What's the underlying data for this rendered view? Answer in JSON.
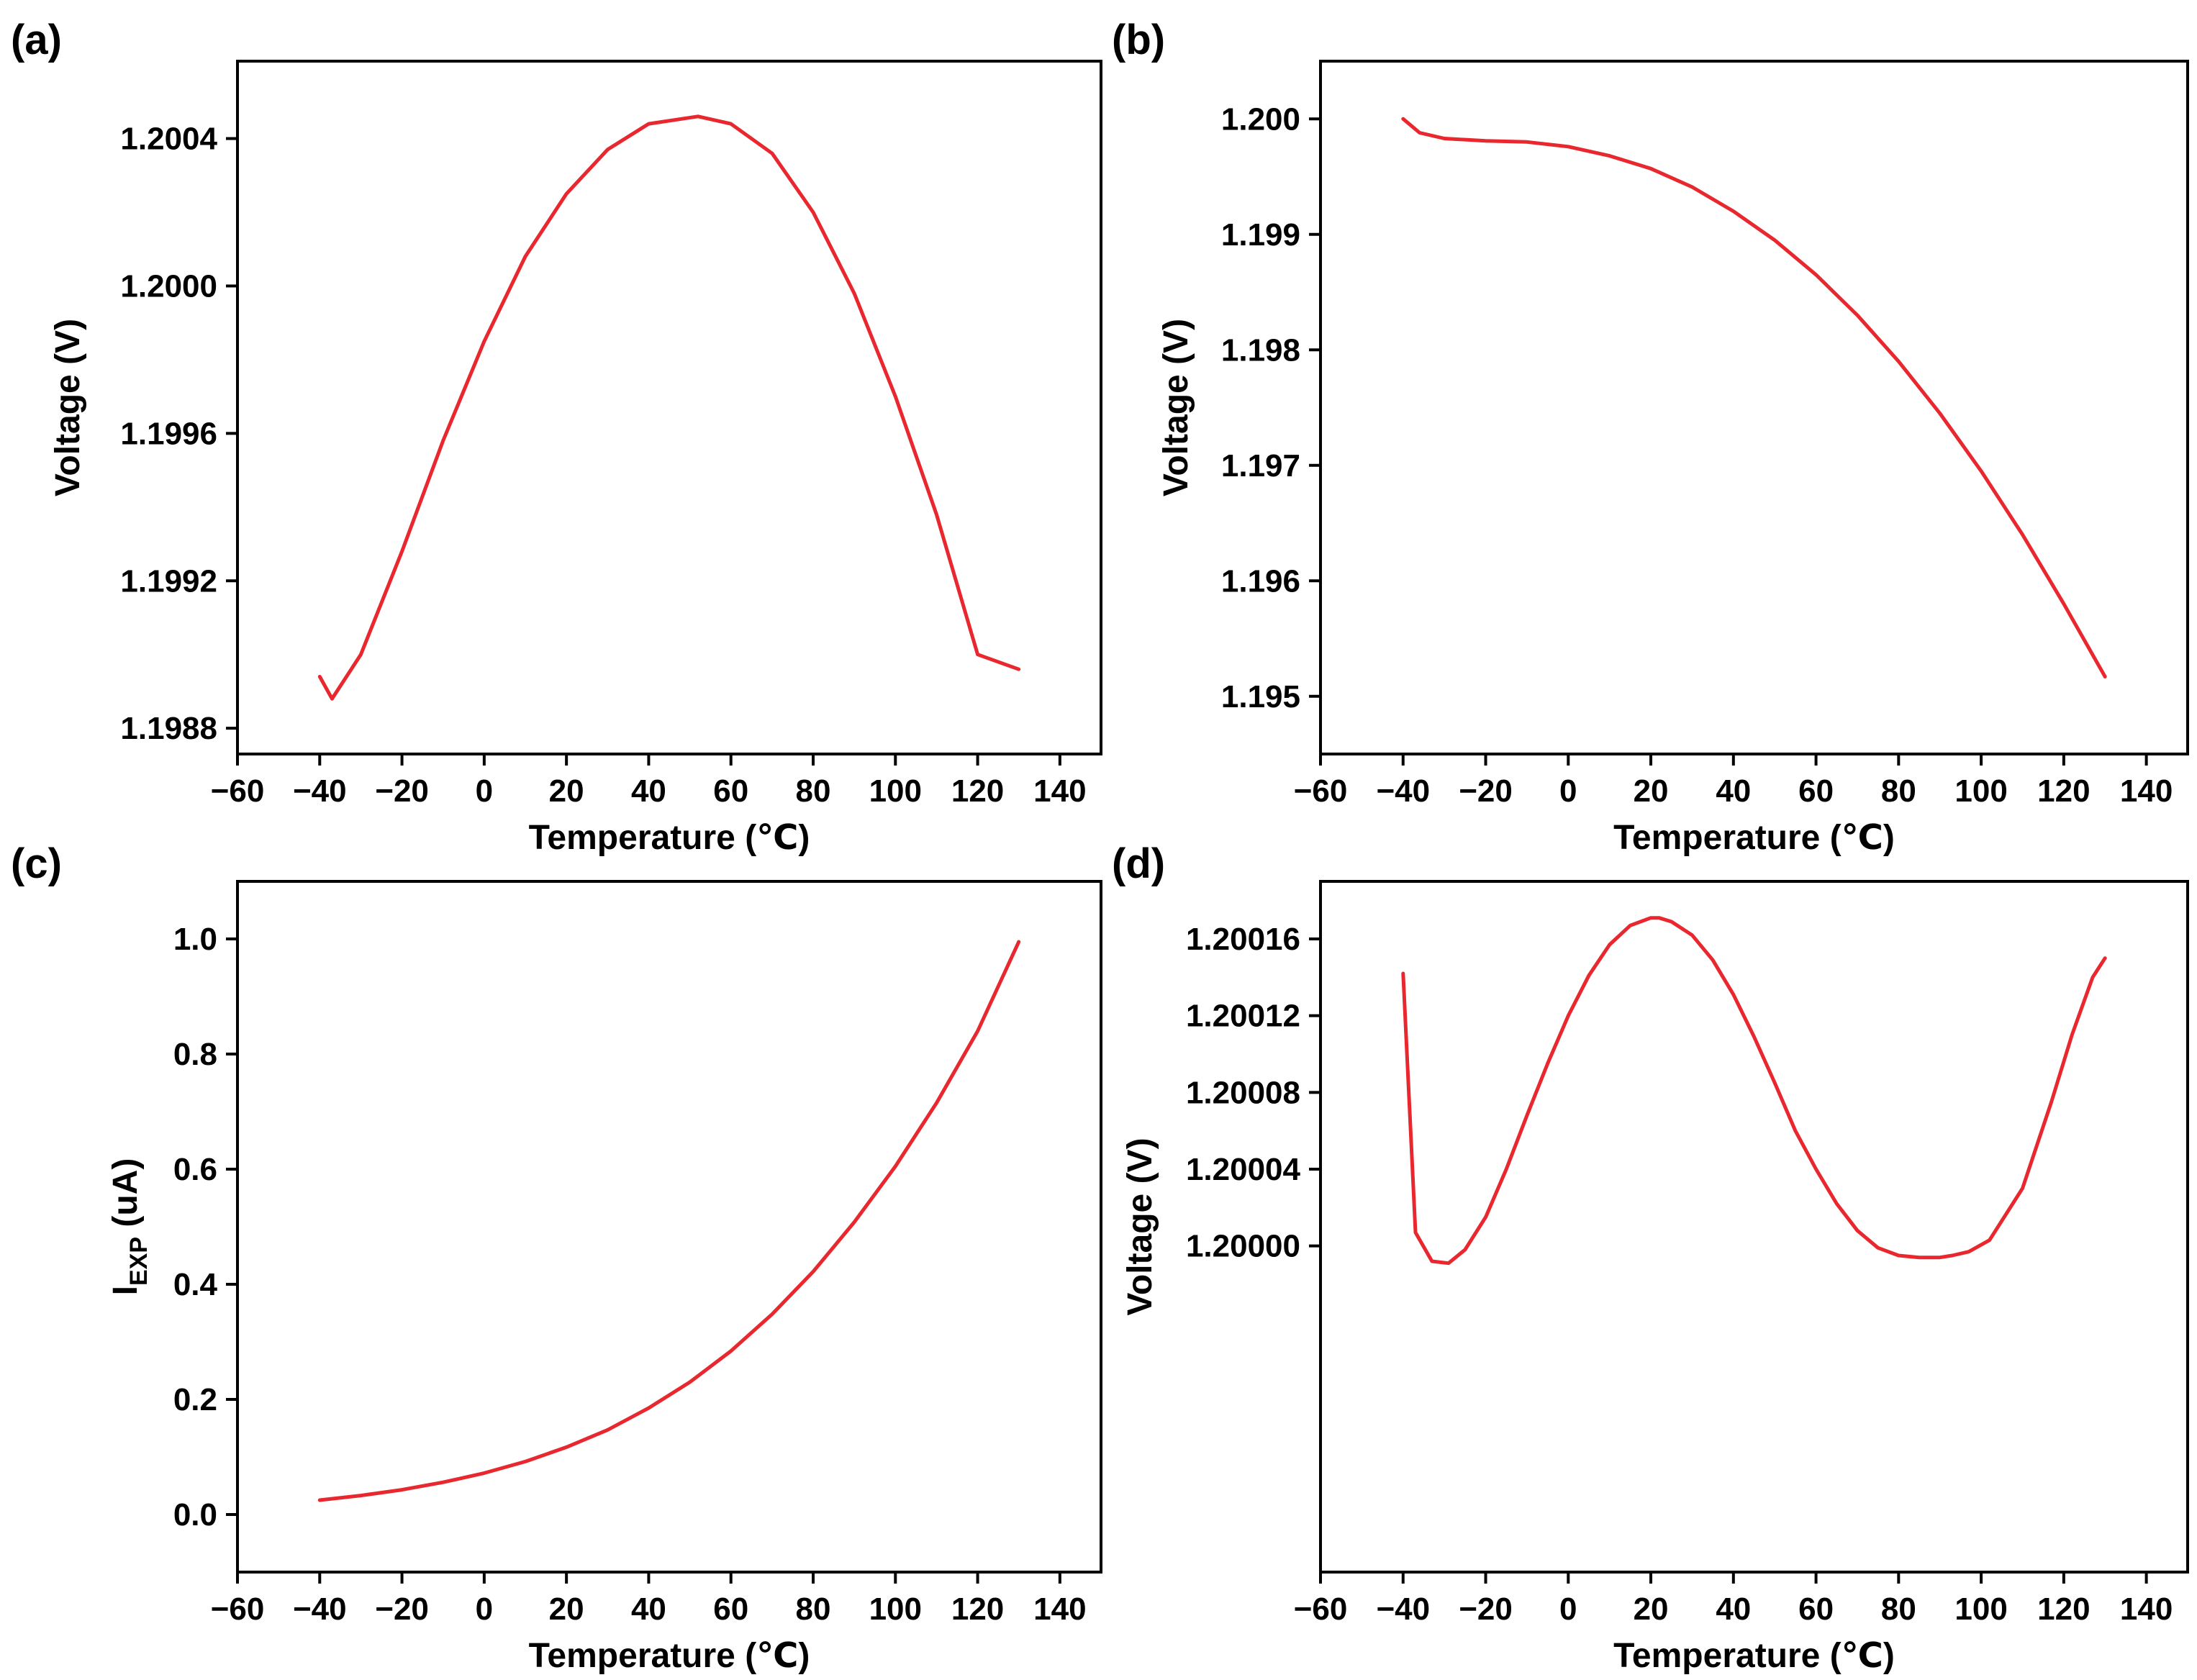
{
  "colors": {
    "series": "#e8282e",
    "axis": "#000000"
  },
  "chart_data": [
    {
      "type": "line",
      "panel_label": "(a)",
      "xlabel": "Temperature (℃)",
      "ylabel": "Voltage (V)",
      "xlim": [
        -60,
        150
      ],
      "ylim": [
        1.19873,
        1.20061
      ],
      "xticks": [
        -60,
        -40,
        -20,
        0,
        20,
        40,
        60,
        80,
        100,
        120,
        140
      ],
      "xtick_labels": [
        "−60",
        "−40",
        "−20",
        "0",
        "20",
        "40",
        "60",
        "80",
        "100",
        "120",
        "140"
      ],
      "yticks": [
        1.1988,
        1.1992,
        1.1996,
        1.2,
        1.2004
      ],
      "ytick_labels": [
        "1.1988",
        "1.1992",
        "1.1996",
        "1.2000",
        "1.2004"
      ],
      "series": [
        {
          "name": "Voltage",
          "x": [
            -40,
            -37,
            -30,
            -20,
            -10,
            0,
            10,
            20,
            30,
            40,
            52,
            60,
            70,
            80,
            90,
            100,
            110,
            120,
            130
          ],
          "y": [
            1.19894,
            1.19888,
            1.199,
            1.19928,
            1.19958,
            1.19985,
            1.20008,
            1.20025,
            1.20037,
            1.20044,
            1.20046,
            1.20044,
            1.20036,
            1.2002,
            1.19998,
            1.1997,
            1.19938,
            1.199,
            1.19896
          ]
        }
      ]
    },
    {
      "type": "line",
      "panel_label": "(b)",
      "xlabel": "Temperature (℃)",
      "ylabel": "Voltage (V)",
      "xlim": [
        -60,
        150
      ],
      "ylim": [
        1.1945,
        1.2005
      ],
      "xticks": [
        -60,
        -40,
        -20,
        0,
        20,
        40,
        60,
        80,
        100,
        120,
        140
      ],
      "xtick_labels": [
        "−60",
        "−40",
        "−20",
        "0",
        "20",
        "40",
        "60",
        "80",
        "100",
        "120",
        "140"
      ],
      "yticks": [
        1.195,
        1.196,
        1.197,
        1.198,
        1.199,
        1.2
      ],
      "ytick_labels": [
        "1.195",
        "1.196",
        "1.197",
        "1.198",
        "1.199",
        "1.200"
      ],
      "series": [
        {
          "name": "Voltage",
          "x": [
            -40,
            -36,
            -30,
            -20,
            -10,
            0,
            10,
            20,
            30,
            40,
            50,
            60,
            70,
            80,
            90,
            100,
            110,
            120,
            130
          ],
          "y": [
            1.2,
            1.19988,
            1.19983,
            1.19981,
            1.1998,
            1.19976,
            1.19968,
            1.19957,
            1.19941,
            1.1992,
            1.19895,
            1.19865,
            1.1983,
            1.1979,
            1.19745,
            1.19695,
            1.1964,
            1.1958,
            1.19517
          ]
        }
      ]
    },
    {
      "type": "line",
      "panel_label": "(c)",
      "xlabel": "Temperature (℃)",
      "ylabel_main": "I",
      "ylabel_sub": "EXP",
      "ylabel_unit": " (uA)",
      "xlim": [
        -60,
        150
      ],
      "ylim": [
        -0.1,
        1.1
      ],
      "xticks": [
        -60,
        -40,
        -20,
        0,
        20,
        40,
        60,
        80,
        100,
        120,
        140
      ],
      "xtick_labels": [
        "−60",
        "−40",
        "−20",
        "0",
        "20",
        "40",
        "60",
        "80",
        "100",
        "120",
        "140"
      ],
      "yticks": [
        0.0,
        0.2,
        0.4,
        0.6,
        0.8,
        1.0
      ],
      "ytick_labels": [
        "0.0",
        "0.2",
        "0.4",
        "0.6",
        "0.8",
        "1.0"
      ],
      "series": [
        {
          "name": "IEXP",
          "x": [
            -40,
            -30,
            -20,
            -10,
            0,
            10,
            20,
            30,
            40,
            50,
            60,
            70,
            80,
            90,
            100,
            110,
            120,
            130
          ],
          "y": [
            0.025,
            0.033,
            0.043,
            0.056,
            0.072,
            0.092,
            0.117,
            0.147,
            0.185,
            0.23,
            0.284,
            0.348,
            0.422,
            0.508,
            0.605,
            0.715,
            0.84,
            0.995
          ]
        }
      ]
    },
    {
      "type": "line",
      "panel_label": "(d)",
      "xlabel": "Temperature (℃)",
      "ylabel": "Voltage (V)",
      "xlim": [
        -60,
        150
      ],
      "ylim": [
        1.19983,
        1.20019
      ],
      "xticks": [
        -60,
        -40,
        -20,
        0,
        20,
        40,
        60,
        80,
        100,
        120,
        140
      ],
      "xtick_labels": [
        "−60",
        "−40",
        "−20",
        "0",
        "20",
        "40",
        "60",
        "80",
        "100",
        "120",
        "140"
      ],
      "yticks": [
        1.2,
        1.20004,
        1.20008,
        1.20012,
        1.20016
      ],
      "ytick_labels": [
        "1.20000",
        "1.20004",
        "1.20008",
        "1.20012",
        "1.20016"
      ],
      "series": [
        {
          "name": "Voltage",
          "x": [
            -40,
            -37,
            -33,
            -29,
            -25,
            -20,
            -15,
            -10,
            -5,
            0,
            5,
            10,
            15,
            20,
            22,
            25,
            30,
            35,
            40,
            45,
            50,
            55,
            60,
            65,
            70,
            75,
            80,
            85,
            90,
            93,
            97,
            102,
            110,
            117,
            122,
            127,
            130
          ],
          "y": [
            1.200142,
            1.200007,
            1.199992,
            1.199991,
            1.199998,
            1.200015,
            1.20004,
            1.200068,
            1.200095,
            1.20012,
            1.200141,
            1.200157,
            1.200167,
            1.200171,
            1.200171,
            1.200169,
            1.200162,
            1.200149,
            1.200131,
            1.200109,
            1.200085,
            1.20006,
            1.20004,
            1.200022,
            1.200008,
            1.199999,
            1.199995,
            1.199994,
            1.199994,
            1.199995,
            1.199997,
            1.200003,
            1.20003,
            1.200075,
            1.20011,
            1.20014,
            1.20015
          ]
        }
      ]
    }
  ]
}
